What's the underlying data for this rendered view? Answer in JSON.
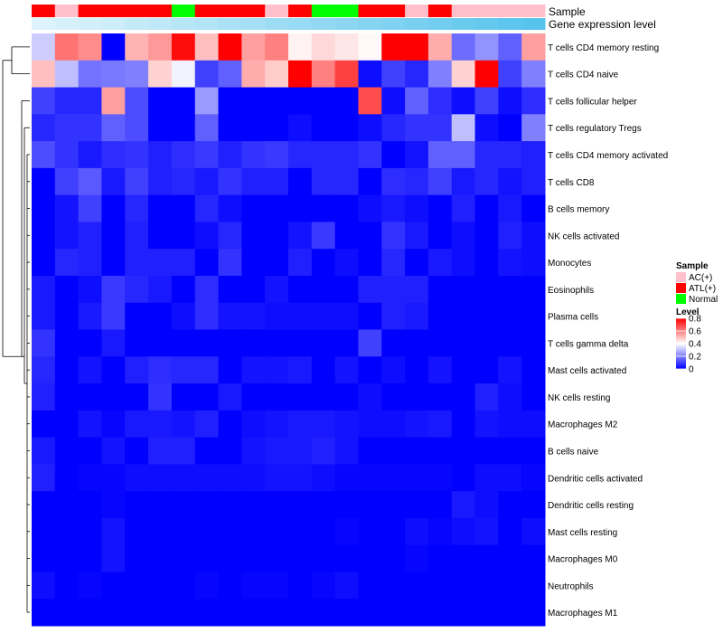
{
  "chart_data": {
    "type": "heatmap",
    "title": "",
    "annotation_tracks": [
      "Sample",
      "Gene expression level"
    ],
    "sample_track": [
      "ATL(+)",
      "AC(+)",
      "ATL(+)",
      "ATL(+)",
      "ATL(+)",
      "ATL(+)",
      "Normal",
      "ATL(+)",
      "ATL(+)",
      "ATL(+)",
      "AC(+)",
      "ATL(+)",
      "Normal",
      "Normal",
      "ATL(+)",
      "ATL(+)",
      "AC(+)",
      "ATL(+)",
      "AC(+)",
      "AC(+)",
      "AC(+)",
      "AC(+)"
    ],
    "expression_track": [
      0.02,
      0.06,
      0.1,
      0.14,
      0.19,
      0.23,
      0.28,
      0.32,
      0.37,
      0.41,
      0.46,
      0.5,
      0.54,
      0.58,
      0.63,
      0.67,
      0.72,
      0.76,
      0.81,
      0.85,
      0.9,
      0.95
    ],
    "rows": [
      "T cells CD4 memory resting",
      "T cells CD4 naive",
      "T cells follicular helper",
      "T cells regulatory  Tregs",
      "T cells CD4 memory activated",
      "T cells CD8",
      "B cells memory",
      "NK cells activated",
      "Monocytes",
      "Eosinophils",
      "Plasma cells",
      "T cells gamma delta",
      "Mast cells activated",
      "NK cells resting",
      "Macrophages M2",
      "B cells naive",
      "Dendritic cells activated",
      "Dendritic cells resting",
      "Mast cells resting",
      "Macrophages M0",
      "Neutrophils",
      "Macrophages M1"
    ],
    "values": [
      [
        0.32,
        0.62,
        0.58,
        0.0,
        0.52,
        0.56,
        0.78,
        0.5,
        0.8,
        0.55,
        0.6,
        0.42,
        0.46,
        0.44,
        0.41,
        0.8,
        0.8,
        0.53,
        0.17,
        0.23,
        0.15,
        0.55
      ],
      [
        0.5,
        0.3,
        0.18,
        0.19,
        0.2,
        0.47,
        0.38,
        0.1,
        0.15,
        0.53,
        0.48,
        0.8,
        0.6,
        0.7,
        0.02,
        0.1,
        0.06,
        0.2,
        0.47,
        0.8,
        0.1,
        0.2
      ],
      [
        0.1,
        0.06,
        0.06,
        0.55,
        0.12,
        0.0,
        0.0,
        0.24,
        0.0,
        0.0,
        0.0,
        0.0,
        0.0,
        0.0,
        0.68,
        0.02,
        0.15,
        0.07,
        0.02,
        0.1,
        0.02,
        0.07
      ],
      [
        0.06,
        0.08,
        0.08,
        0.15,
        0.12,
        0.0,
        0.0,
        0.15,
        0.0,
        0.0,
        0.0,
        0.02,
        0.0,
        0.0,
        0.02,
        0.06,
        0.08,
        0.08,
        0.3,
        0.02,
        0.0,
        0.2
      ],
      [
        0.12,
        0.08,
        0.04,
        0.07,
        0.08,
        0.05,
        0.07,
        0.09,
        0.05,
        0.08,
        0.09,
        0.06,
        0.06,
        0.06,
        0.08,
        0.0,
        0.03,
        0.15,
        0.15,
        0.06,
        0.06,
        0.05
      ],
      [
        0.0,
        0.1,
        0.14,
        0.04,
        0.1,
        0.05,
        0.06,
        0.04,
        0.08,
        0.05,
        0.05,
        0.0,
        0.06,
        0.06,
        0.0,
        0.07,
        0.06,
        0.1,
        0.04,
        0.06,
        0.03,
        0.05
      ],
      [
        0.0,
        0.03,
        0.1,
        0.0,
        0.06,
        0.0,
        0.0,
        0.06,
        0.02,
        0.0,
        0.0,
        0.0,
        0.0,
        0.0,
        0.02,
        0.04,
        0.02,
        0.0,
        0.05,
        0.0,
        0.04,
        0.0
      ],
      [
        0.0,
        0.03,
        0.05,
        0.0,
        0.05,
        0.0,
        0.0,
        0.02,
        0.06,
        0.0,
        0.0,
        0.03,
        0.09,
        0.0,
        0.0,
        0.08,
        0.04,
        0.0,
        0.02,
        0.0,
        0.05,
        0.02
      ],
      [
        0.0,
        0.06,
        0.05,
        0.0,
        0.05,
        0.05,
        0.05,
        0.0,
        0.08,
        0.0,
        0.0,
        0.05,
        0.0,
        0.02,
        0.0,
        0.06,
        0.0,
        0.04,
        0.02,
        0.0,
        0.03,
        0.02
      ],
      [
        0.04,
        0.0,
        0.02,
        0.09,
        0.06,
        0.04,
        0.0,
        0.07,
        0.0,
        0.0,
        0.03,
        0.0,
        0.0,
        0.0,
        0.05,
        0.05,
        0.05,
        0.0,
        0.0,
        0.0,
        0.0,
        0.0
      ],
      [
        0.04,
        0.0,
        0.04,
        0.09,
        0.0,
        0.0,
        0.02,
        0.07,
        0.03,
        0.03,
        0.02,
        0.02,
        0.02,
        0.02,
        0.0,
        0.05,
        0.04,
        0.0,
        0.0,
        0.0,
        0.0,
        0.0
      ],
      [
        0.08,
        0.0,
        0.0,
        0.04,
        0.0,
        0.0,
        0.0,
        0.0,
        0.0,
        0.0,
        0.0,
        0.0,
        0.0,
        0.0,
        0.1,
        0.0,
        0.0,
        0.0,
        0.0,
        0.0,
        0.0,
        0.0
      ],
      [
        0.06,
        0.0,
        0.03,
        0.0,
        0.05,
        0.07,
        0.06,
        0.06,
        0.0,
        0.03,
        0.03,
        0.04,
        0.0,
        0.03,
        0.0,
        0.02,
        0.0,
        0.03,
        0.0,
        0.0,
        0.03,
        0.0
      ],
      [
        0.05,
        0.0,
        0.0,
        0.0,
        0.0,
        0.08,
        0.0,
        0.0,
        0.04,
        0.0,
        0.0,
        0.0,
        0.0,
        0.0,
        0.02,
        0.0,
        0.0,
        0.0,
        0.0,
        0.05,
        0.02,
        0.0
      ],
      [
        0.0,
        0.0,
        0.03,
        0.01,
        0.04,
        0.04,
        0.03,
        0.05,
        0.0,
        0.02,
        0.03,
        0.04,
        0.04,
        0.03,
        0.02,
        0.02,
        0.03,
        0.04,
        0.0,
        0.03,
        0.02,
        0.02
      ],
      [
        0.04,
        0.0,
        0.0,
        0.03,
        0.0,
        0.05,
        0.05,
        0.0,
        0.0,
        0.03,
        0.04,
        0.04,
        0.05,
        0.03,
        0.0,
        0.0,
        0.0,
        0.0,
        0.0,
        0.0,
        0.0,
        0.0
      ],
      [
        0.05,
        0.0,
        0.01,
        0.01,
        0.02,
        0.02,
        0.02,
        0.02,
        0.02,
        0.02,
        0.03,
        0.03,
        0.02,
        0.01,
        0.01,
        0.01,
        0.01,
        0.01,
        0.0,
        0.02,
        0.02,
        0.01
      ],
      [
        0.0,
        0.0,
        0.0,
        0.01,
        0.0,
        0.0,
        0.0,
        0.0,
        0.0,
        0.0,
        0.0,
        0.0,
        0.0,
        0.0,
        0.0,
        0.0,
        0.0,
        0.0,
        0.04,
        0.02,
        0.0,
        0.0
      ],
      [
        0.0,
        0.0,
        0.0,
        0.03,
        0.0,
        0.0,
        0.0,
        0.0,
        0.0,
        0.0,
        0.0,
        0.0,
        0.0,
        0.01,
        0.0,
        0.0,
        0.02,
        0.01,
        0.02,
        0.03,
        0.0,
        0.02
      ],
      [
        0.0,
        0.0,
        0.0,
        0.03,
        0.0,
        0.0,
        0.0,
        0.0,
        0.0,
        0.0,
        0.0,
        0.0,
        0.0,
        0.0,
        0.0,
        0.0,
        0.01,
        0.0,
        0.0,
        0.0,
        0.0,
        0.0
      ],
      [
        0.02,
        0.0,
        0.01,
        0.0,
        0.0,
        0.0,
        0.0,
        0.01,
        0.0,
        0.01,
        0.01,
        0.0,
        0.01,
        0.02,
        0.0,
        0.0,
        0.0,
        0.0,
        0.0,
        0.0,
        0.0,
        0.0
      ],
      [
        0.0,
        0.0,
        0.0,
        0.0,
        0.0,
        0.0,
        0.0,
        0.0,
        0.0,
        0.0,
        0.0,
        0.0,
        0.0,
        0.0,
        0.0,
        0.0,
        0.0,
        0.0,
        0.0,
        0.0,
        0.0,
        0.0
      ]
    ],
    "legend": {
      "sample_title": "Sample",
      "sample_entries": [
        {
          "label": "AC(+)",
          "color": "#ffc0cb"
        },
        {
          "label": "ATL(+)",
          "color": "#ff0000"
        },
        {
          "label": "Normal",
          "color": "#00ff00"
        }
      ],
      "level_title": "Level",
      "level_ticks": [
        "0.8",
        "0.6",
        "0.4",
        "0.2",
        "0"
      ],
      "level_tick_values": [
        0.8,
        0.6,
        0.4,
        0.2,
        0
      ],
      "level_range": [
        0,
        0.8
      ]
    },
    "colors": {
      "low": "#0000ff",
      "mid": "#ffffff",
      "high": "#ff0000",
      "expression_light": "#e0f4fb",
      "expression_dark": "#4fc1ec"
    },
    "dendrogram": "hierarchical clustering of rows (left)"
  }
}
